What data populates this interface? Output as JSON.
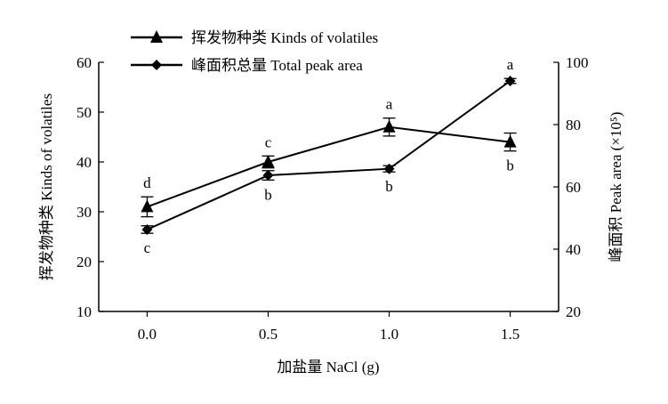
{
  "chart_data": {
    "type": "line",
    "xlabel": "加盐量 NaCl (g)",
    "ylabel_left": "挥发物种类 Kinds of volatiles",
    "ylabel_right": "峰面积 Peak area (×10⁵)",
    "categories": [
      "0.0",
      "0.5",
      "1.0",
      "1.5"
    ],
    "x": [
      0,
      0.5,
      1.0,
      1.5
    ],
    "xlim": [
      -0.2,
      1.7
    ],
    "ylim_left": [
      10,
      60
    ],
    "yticks_left": [
      10,
      20,
      30,
      40,
      50,
      60
    ],
    "ylim_right": [
      20,
      100
    ],
    "yticks_right": [
      20,
      40,
      60,
      80,
      100
    ],
    "legend_position": "top-left",
    "grid": false,
    "series": [
      {
        "name": "挥发物种类 Kinds of volatiles",
        "axis": "left",
        "marker": "triangle",
        "values": [
          31,
          40,
          47,
          44
        ],
        "errors": [
          2,
          1.2,
          1.8,
          1.8
        ],
        "letters": [
          "d",
          "c",
          "a",
          "b"
        ],
        "letter_pos": [
          "above",
          "above",
          "above",
          "below"
        ]
      },
      {
        "name": "峰面积总量 Total peak area",
        "axis": "right",
        "marker": "diamond",
        "values": [
          46.3,
          63.7,
          65.8,
          94.0
        ],
        "errors": [
          1.2,
          1.5,
          1.0,
          0.8
        ],
        "letters": [
          "c",
          "b",
          "b",
          "a"
        ],
        "letter_pos": [
          "below",
          "below",
          "below",
          "above"
        ]
      }
    ]
  }
}
